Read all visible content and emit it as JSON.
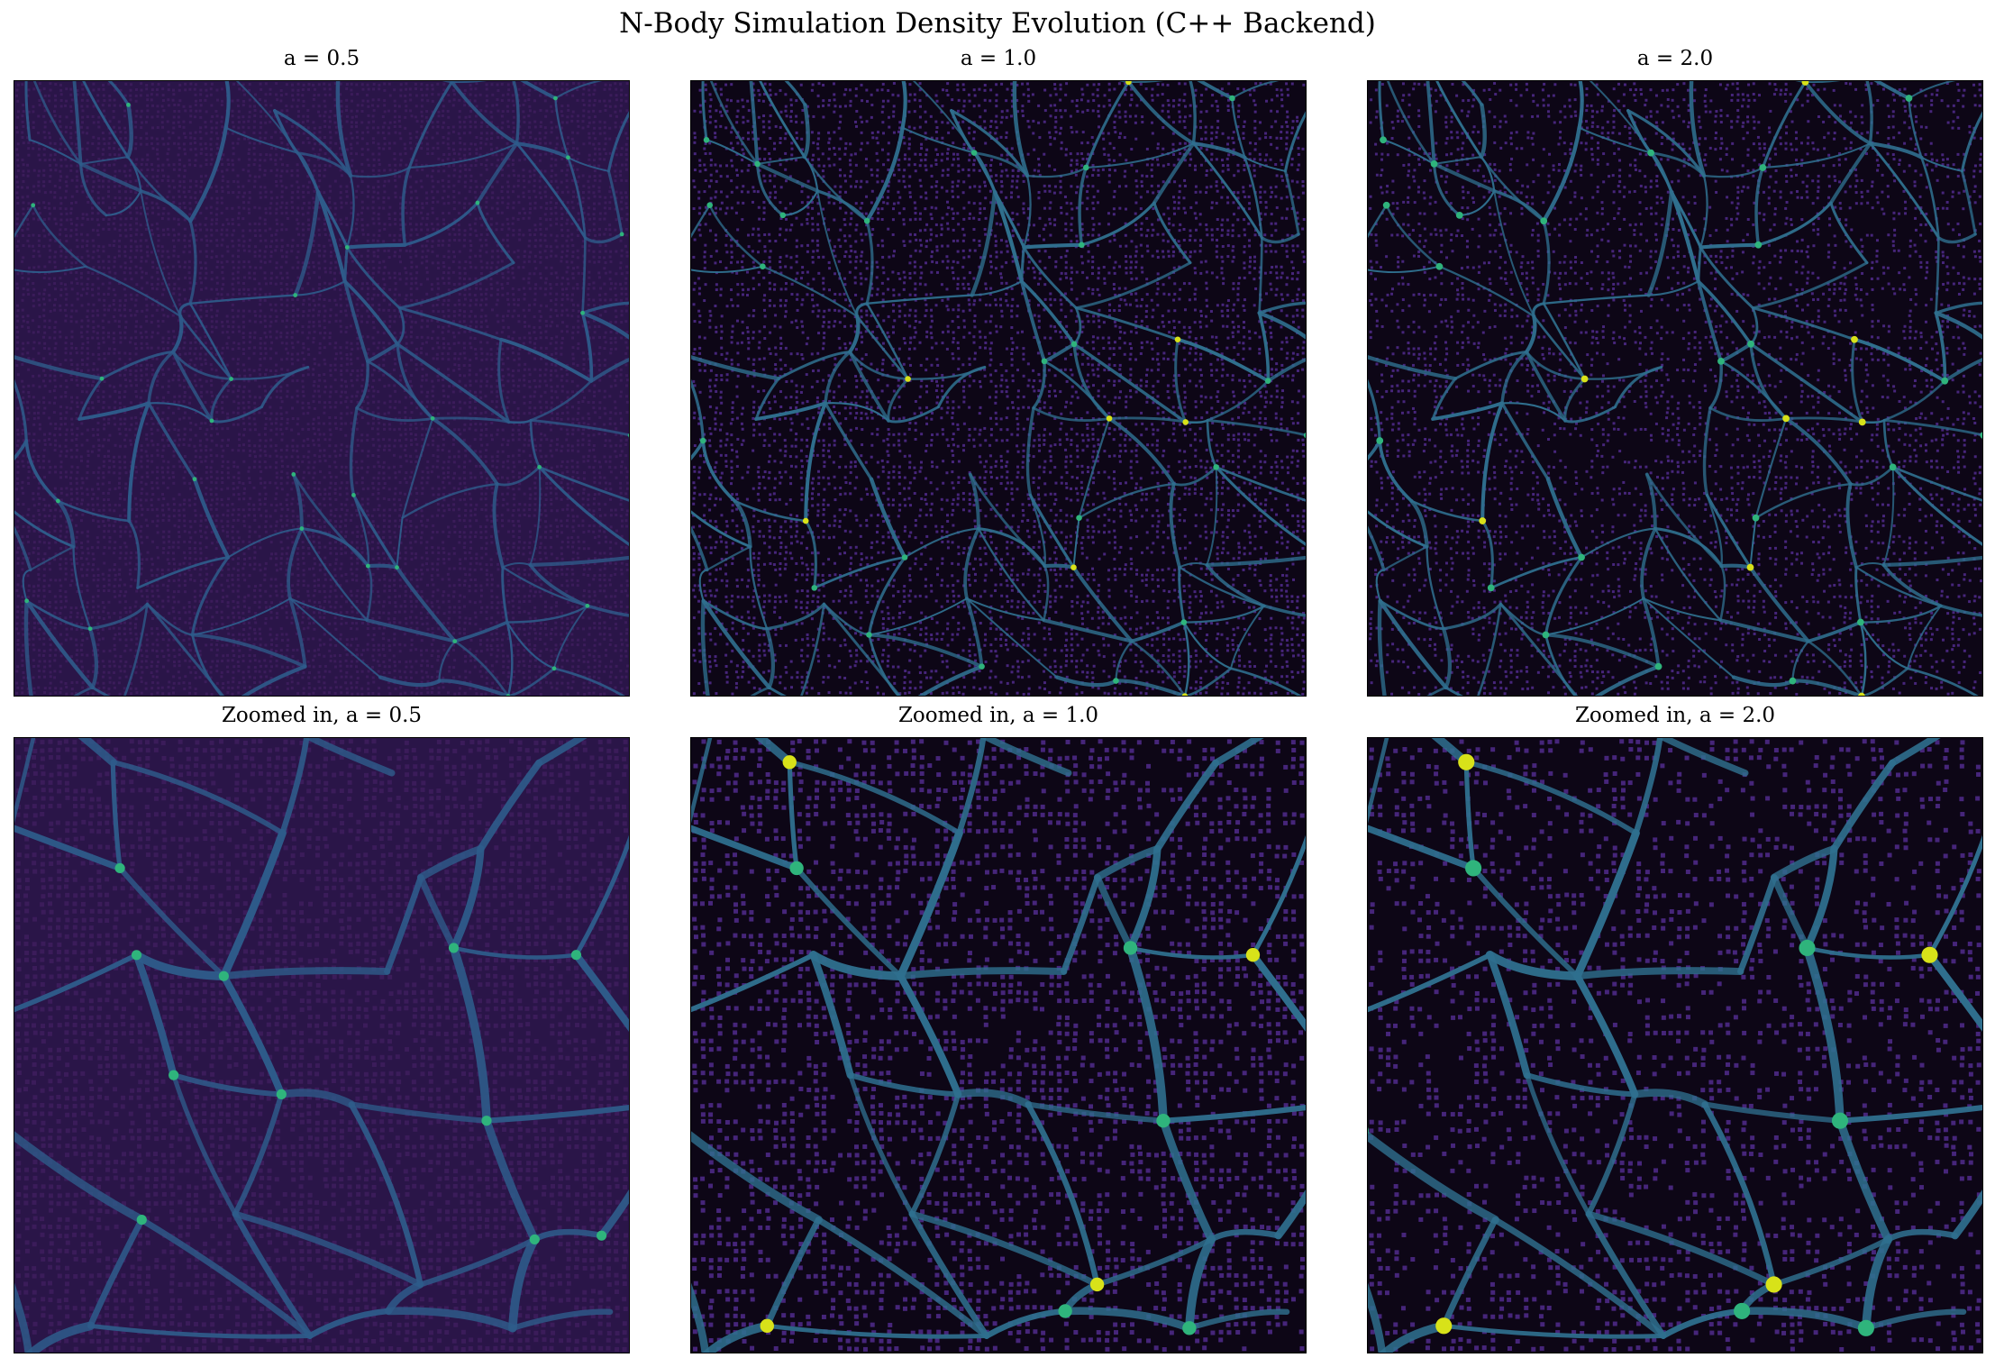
{
  "figure": {
    "title": "N-Body Simulation Density Evolution (C++ Backend)",
    "colormap": "viridis",
    "colors": {
      "background": "#000000",
      "void": "#3b1c5a",
      "filament": "#2f6f8e",
      "bright": "#2fb47c",
      "peak": "#d8e219"
    }
  },
  "panels": [
    {
      "title": "a = 0.5",
      "scale_factor": 0.5,
      "zoom": false
    },
    {
      "title": "a = 1.0",
      "scale_factor": 1.0,
      "zoom": false
    },
    {
      "title": "a = 2.0",
      "scale_factor": 2.0,
      "zoom": false
    },
    {
      "title": "Zoomed in, a = 0.5",
      "scale_factor": 0.5,
      "zoom": true
    },
    {
      "title": "Zoomed in, a = 1.0",
      "scale_factor": 1.0,
      "zoom": true
    },
    {
      "title": "Zoomed in, a = 2.0",
      "scale_factor": 2.0,
      "zoom": true
    }
  ]
}
